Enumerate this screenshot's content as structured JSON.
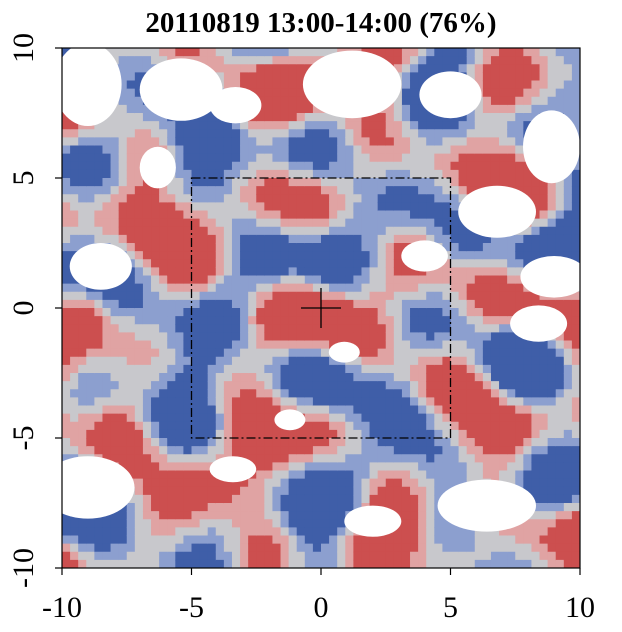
{
  "chart_data": {
    "type": "heatmap",
    "title": "20110819 13:00-14:00 (76%)",
    "xlabel": "",
    "ylabel": "",
    "xlim": [
      -10,
      10
    ],
    "ylim": [
      -10,
      10
    ],
    "xticks": [
      -10,
      -5,
      0,
      5,
      10
    ],
    "yticks": [
      -10,
      -5,
      0,
      5,
      10
    ],
    "x_tick_labels": [
      "-10",
      "-5",
      "0",
      "5",
      "10"
    ],
    "y_tick_labels": [
      "-10",
      "-5",
      "0",
      "5",
      "10"
    ],
    "inner_box": {
      "x": [
        -5,
        5
      ],
      "y": [
        -5,
        5
      ],
      "line_style": "dash-dot"
    },
    "center_marker": {
      "x": 0,
      "y": 0,
      "shape": "plus"
    },
    "colormap": {
      "negative": "#3f5ea8",
      "mid_negative": "#8c9fcf",
      "neutral": "#c8c8cc",
      "mid_positive": "#e0a3a3",
      "positive": "#cc4f4f",
      "missing": "#ffffff"
    },
    "grid": false
  }
}
